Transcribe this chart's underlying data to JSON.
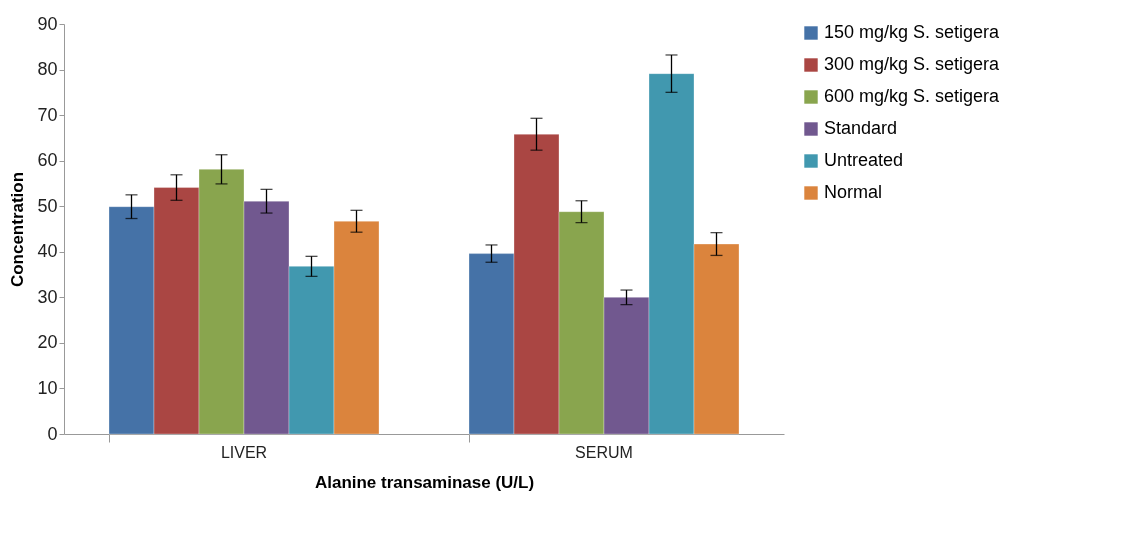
{
  "chart_data": {
    "type": "bar",
    "xlabel": "Alanine transaminase (U/L)",
    "ylabel": "Concentration",
    "categories": [
      "LIVER",
      "SERUM"
    ],
    "series": [
      {
        "name": "150 mg/kg  S. setigera",
        "color": "#4572a7",
        "values": [
          49.9,
          39.6
        ],
        "errors": [
          2.6,
          1.9
        ]
      },
      {
        "name": "300 mg/kg  S. setigera",
        "color": "#aa4643",
        "values": [
          54.1,
          65.8
        ],
        "errors": [
          2.8,
          3.5
        ]
      },
      {
        "name": "600 mg/kg  S. setigera",
        "color": "#89a54e",
        "values": [
          58.1,
          48.8
        ],
        "errors": [
          3.2,
          2.4
        ]
      },
      {
        "name": "Standard",
        "color": "#71588f",
        "values": [
          51.1,
          30.0
        ],
        "errors": [
          2.6,
          1.6
        ]
      },
      {
        "name": "Untreated",
        "color": "#4198af",
        "values": [
          36.8,
          79.1
        ],
        "errors": [
          2.2,
          4.1
        ]
      },
      {
        "name": "Normal",
        "color": "#db843d",
        "values": [
          46.7,
          41.7
        ],
        "errors": [
          2.4,
          2.5
        ]
      }
    ],
    "ylim": [
      0,
      90
    ],
    "yticks": [
      0,
      10,
      20,
      30,
      40,
      50,
      60,
      70,
      80,
      90
    ],
    "grid": false,
    "legend": "right"
  }
}
